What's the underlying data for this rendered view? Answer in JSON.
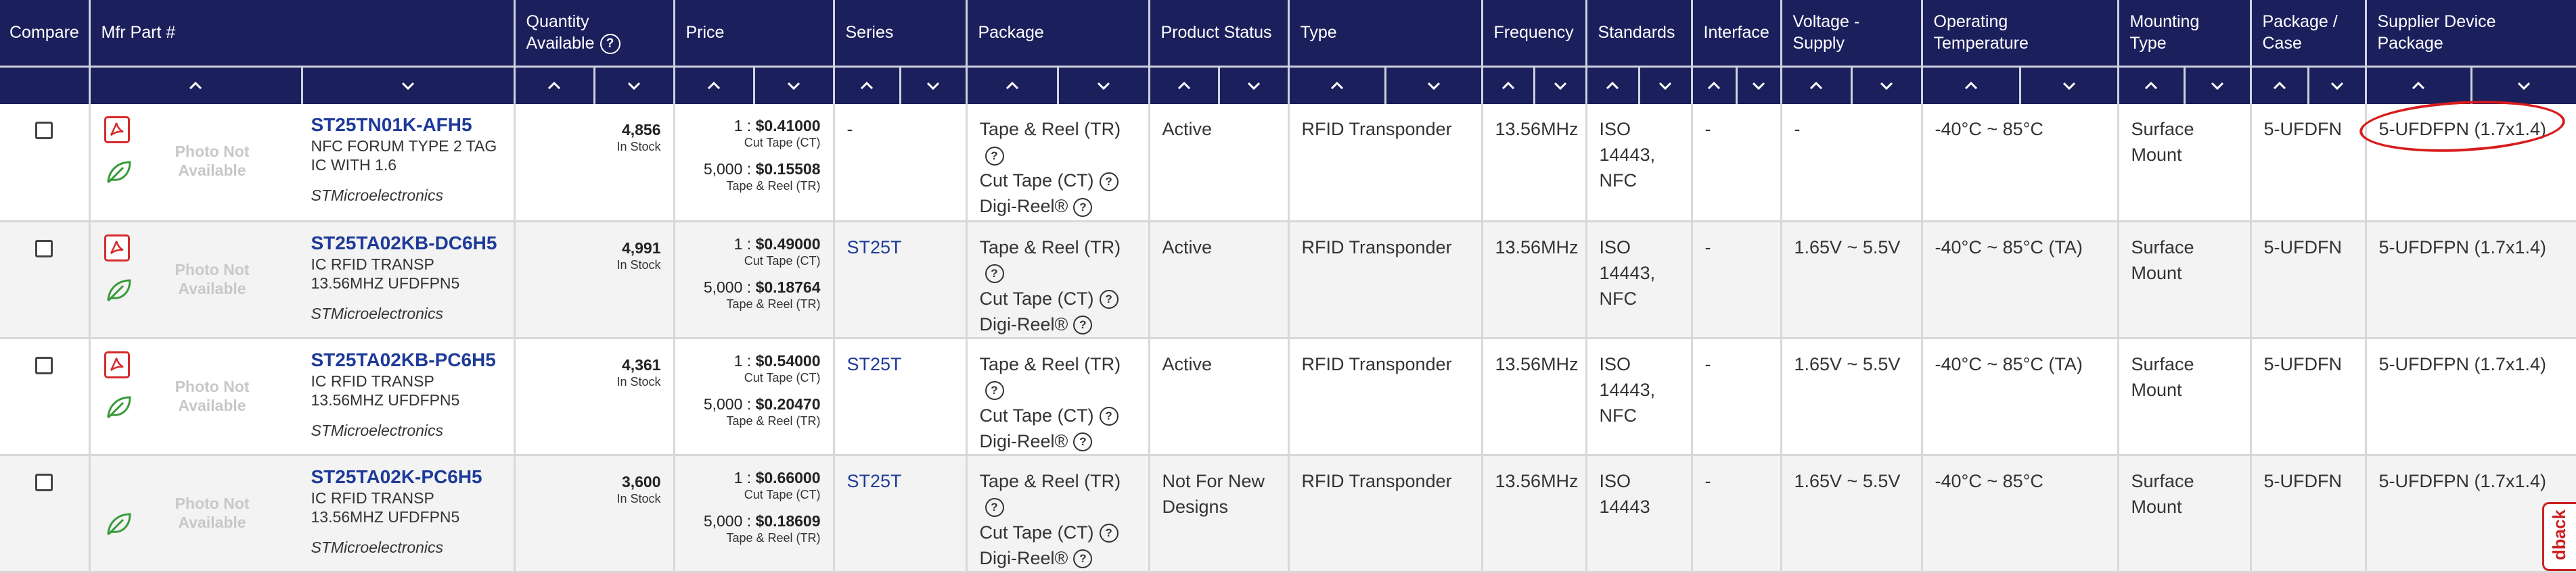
{
  "headers": {
    "compare": "Compare",
    "mfr_part": "Mfr Part #",
    "quantity_line1": "Quantity",
    "quantity_line2": "Available",
    "price": "Price",
    "series": "Series",
    "package": "Package",
    "product_status": "Product Status",
    "type": "Type",
    "frequency": "Frequency",
    "standards": "Standards",
    "interface": "Interface",
    "voltage": "Voltage - Supply",
    "operating_temp": "Operating Temperature",
    "mounting_type": "Mounting Type",
    "package_case": "Package / Case",
    "supplier_pkg": "Supplier Device Package"
  },
  "sort_icons": {
    "asc": "chevron-up-icon",
    "desc": "chevron-down-icon"
  },
  "photo_text": "Photo Not Available",
  "instock_label": "In Stock",
  "pricing_labels": {
    "ct": "Cut Tape (CT)",
    "tr": "Tape & Reel (TR)"
  },
  "package_options": [
    "Tape & Reel (TR)",
    "Cut Tape (CT)",
    "Digi-Reel®"
  ],
  "rows": [
    {
      "part": "ST25TN01K-AFH5",
      "desc": "NFC FORUM TYPE 2 TAG IC WITH 1.6",
      "mfr": "STMicroelectronics",
      "has_pdf": true,
      "qty": "4,856",
      "p1_qty": "1 : ",
      "p1": "$0.41000",
      "p2_qty": "5,000 : ",
      "p2": "$0.15508",
      "series": "-",
      "status": "Active",
      "type": "RFID Transponder",
      "frequency": "13.56MHz",
      "standards": "ISO 14443, NFC",
      "interface": "-",
      "voltage": "-",
      "temp": "-40°C ~ 85°C",
      "mounting": "Surface Mount",
      "case": "5-UFDFN",
      "supplier_pkg": "5-UFDFPN (1.7x1.4)"
    },
    {
      "part": "ST25TA02KB-DC6H5",
      "desc": "IC RFID TRANSP 13.56MHZ UFDFPN5",
      "mfr": "STMicroelectronics",
      "has_pdf": true,
      "qty": "4,991",
      "p1_qty": "1 : ",
      "p1": "$0.49000",
      "p2_qty": "5,000 : ",
      "p2": "$0.18764",
      "series": "ST25T",
      "status": "Active",
      "type": "RFID Transponder",
      "frequency": "13.56MHz",
      "standards": "ISO 14443, NFC",
      "interface": "-",
      "voltage": "1.65V ~ 5.5V",
      "temp": "-40°C ~ 85°C (TA)",
      "mounting": "Surface Mount",
      "case": "5-UFDFN",
      "supplier_pkg": "5-UFDFPN (1.7x1.4)"
    },
    {
      "part": "ST25TA02KB-PC6H5",
      "desc": "IC RFID TRANSP 13.56MHZ UFDFPN5",
      "mfr": "STMicroelectronics",
      "has_pdf": true,
      "qty": "4,361",
      "p1_qty": "1 : ",
      "p1": "$0.54000",
      "p2_qty": "5,000 : ",
      "p2": "$0.20470",
      "series": "ST25T",
      "status": "Active",
      "type": "RFID Transponder",
      "frequency": "13.56MHz",
      "standards": "ISO 14443, NFC",
      "interface": "-",
      "voltage": "1.65V ~ 5.5V",
      "temp": "-40°C ~ 85°C (TA)",
      "mounting": "Surface Mount",
      "case": "5-UFDFN",
      "supplier_pkg": "5-UFDFPN (1.7x1.4)"
    },
    {
      "part": "ST25TA02K-PC6H5",
      "desc": "IC RFID TRANSP 13.56MHZ UFDFPN5",
      "mfr": "STMicroelectronics",
      "has_pdf": false,
      "qty": "3,600",
      "p1_qty": "1 : ",
      "p1": "$0.66000",
      "p2_qty": "5,000 : ",
      "p2": "$0.18609",
      "series": "ST25T",
      "status": "Not For New Designs",
      "type": "RFID Transponder",
      "frequency": "13.56MHz",
      "standards": "ISO 14443",
      "interface": "-",
      "voltage": "1.65V ~ 5.5V",
      "temp": "-40°C ~ 85°C",
      "mounting": "Surface Mount",
      "case": "5-UFDFN",
      "supplier_pkg": "5-UFDFPN (1.7x1.4)"
    }
  ],
  "feedback_label": "dback",
  "colors": {
    "header_bg": "#1b1f5c",
    "link": "#1e3a99",
    "highlight": "#d71c1c"
  }
}
